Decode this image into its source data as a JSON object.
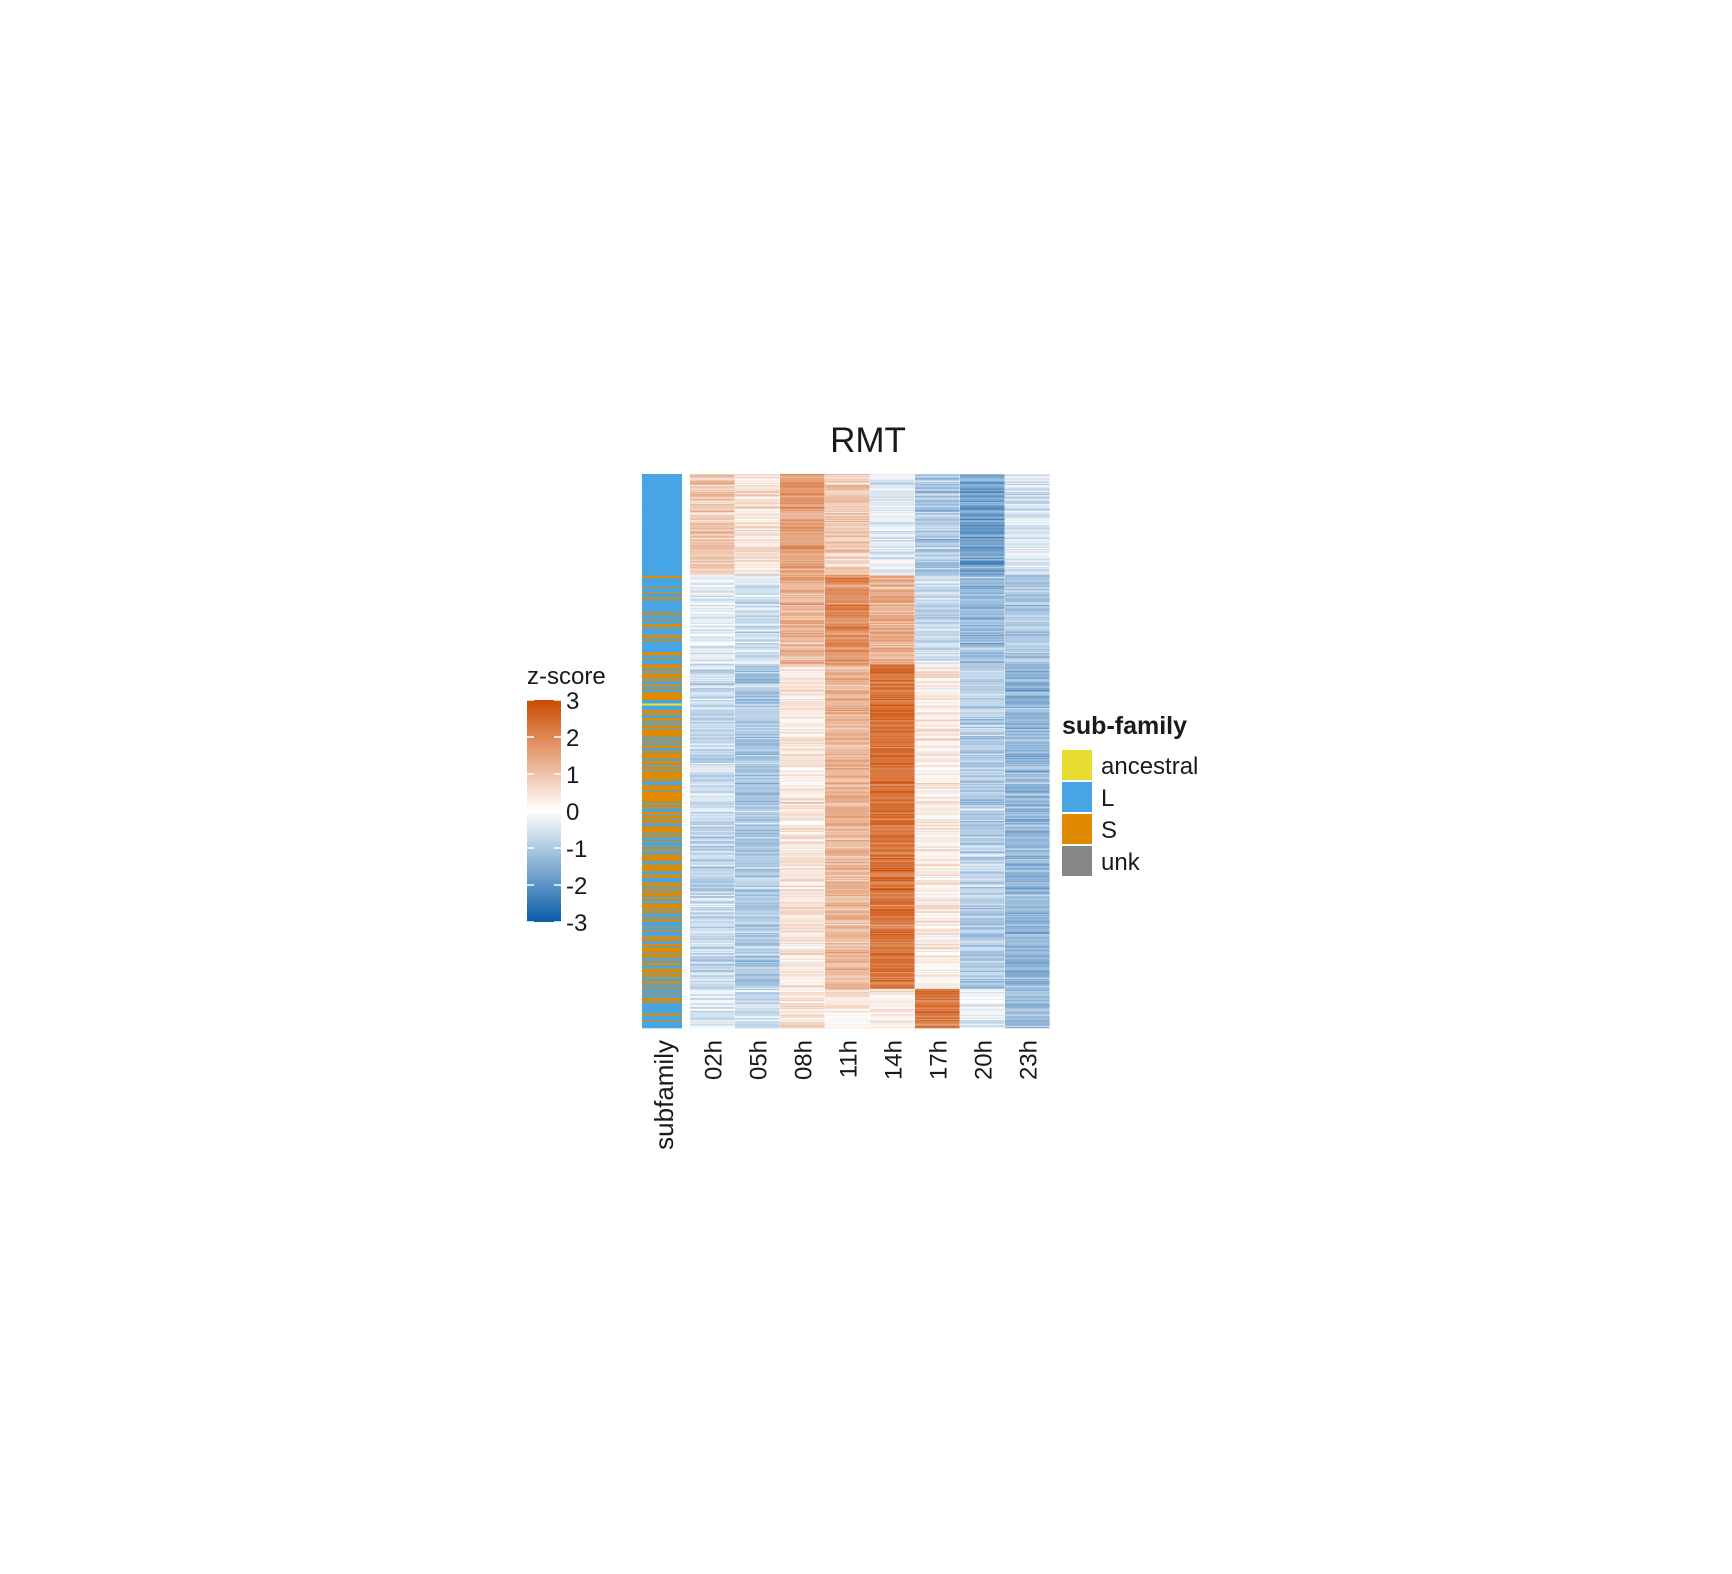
{
  "chart_data": {
    "type": "heatmap",
    "title": "RMT",
    "columns": [
      "02h",
      "05h",
      "08h",
      "11h",
      "14h",
      "17h",
      "20h",
      "23h"
    ],
    "annotation_label": "subfamily",
    "colorbar": {
      "title": "z-score",
      "range": [
        -3,
        3
      ],
      "ticks": [
        3,
        2,
        1,
        0,
        -1,
        -2,
        -3
      ],
      "colors": {
        "low": "#0b5ca8",
        "mid": "#ffffff",
        "high": "#cc4a00"
      }
    },
    "legend": {
      "title": "sub-family",
      "items": [
        {
          "label": "ancestral",
          "color": "#e8dc32"
        },
        {
          "label": "L",
          "color": "#46a5e5"
        },
        {
          "label": "S",
          "color": "#e08a00"
        },
        {
          "label": "unk",
          "color": "#868686"
        }
      ]
    },
    "row_clusters": [
      {
        "rows": 90,
        "means": [
          0.9,
          0.5,
          1.6,
          0.8,
          -0.3,
          -1.0,
          -1.8,
          -0.5
        ],
        "subfamily": {
          "L": 1.0
        }
      },
      {
        "rows": 80,
        "means": [
          -0.3,
          -0.6,
          1.3,
          1.8,
          1.3,
          -0.6,
          -1.3,
          -1.0
        ],
        "subfamily": {
          "L": 0.7,
          "S": 0.3
        }
      },
      {
        "rows": 290,
        "means": [
          -0.7,
          -1.0,
          0.4,
          1.2,
          2.3,
          0.3,
          -0.9,
          -1.3
        ],
        "subfamily": {
          "S": 0.55,
          "L": 0.45
        },
        "ancestral_rows": [
          35,
          36
        ]
      },
      {
        "rows": 35,
        "means": [
          -0.4,
          -0.7,
          0.5,
          0.3,
          0.3,
          2.2,
          -0.3,
          -1.2
        ],
        "subfamily": {
          "L": 0.8,
          "S": 0.2
        }
      }
    ],
    "total_rows": 495
  }
}
